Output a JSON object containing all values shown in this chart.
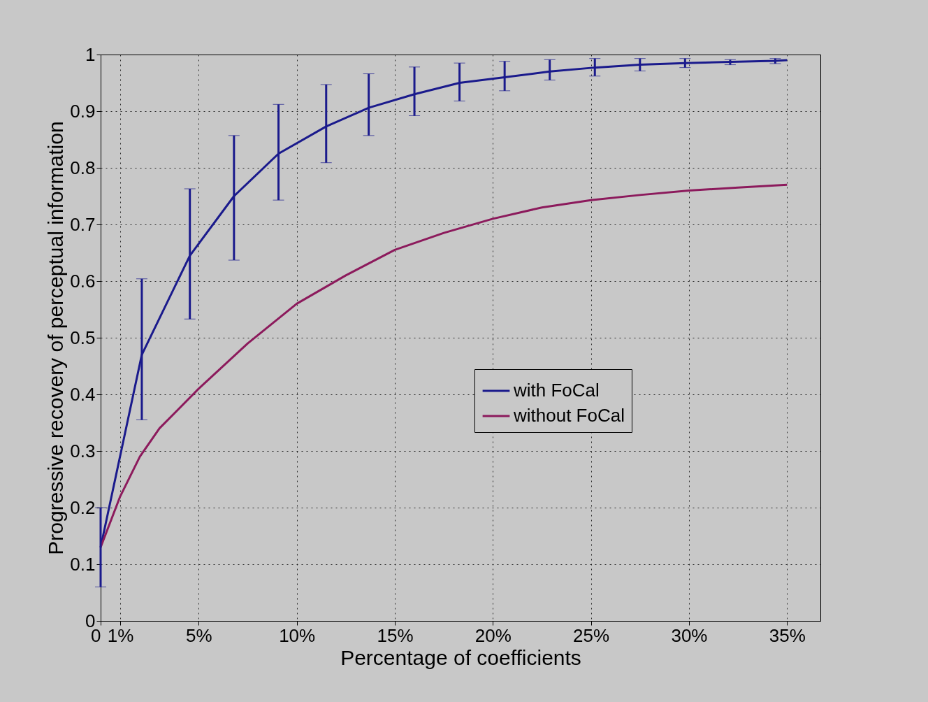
{
  "chart_data": {
    "type": "line",
    "xlabel": "Percentage of coefficients",
    "ylabel": "Progressive recovery of perceptual information",
    "xlim": [
      0,
      36.7
    ],
    "ylim": [
      0,
      1
    ],
    "xticks": [
      {
        "value": 0,
        "label": "0"
      },
      {
        "value": 1,
        "label": "1%"
      },
      {
        "value": 5,
        "label": "5%"
      },
      {
        "value": 10,
        "label": "10%"
      },
      {
        "value": 15,
        "label": "15%"
      },
      {
        "value": 20,
        "label": "20%"
      },
      {
        "value": 25,
        "label": "25%"
      },
      {
        "value": 30,
        "label": "30%"
      },
      {
        "value": 35,
        "label": "35%"
      }
    ],
    "yticks": [
      0,
      0.1,
      0.2,
      0.3,
      0.4,
      0.5,
      0.6,
      0.7,
      0.8,
      0.9,
      1
    ],
    "grid": true,
    "legend": "bottom right",
    "line_style": "solid",
    "marker": "none",
    "series": [
      {
        "name": "with FoCal",
        "color": "#1a1a8c",
        "x": [
          0,
          2.1,
          4.55,
          6.8,
          9.07,
          11.5,
          13.67,
          16.0,
          18.3,
          20.6,
          22.9,
          25.2,
          27.5,
          29.8,
          32.1,
          34.4,
          35
        ],
        "values": [
          0.13,
          0.47,
          0.645,
          0.75,
          0.825,
          0.873,
          0.906,
          0.93,
          0.95,
          0.96,
          0.97,
          0.977,
          0.982,
          0.985,
          0.987,
          0.989,
          0.99
        ],
        "errors": [
          [
            0.06,
            0.2
          ],
          [
            0.355,
            0.604
          ],
          [
            0.533,
            0.763
          ],
          [
            0.637,
            0.857
          ],
          [
            0.743,
            0.912
          ],
          [
            0.809,
            0.947
          ],
          [
            0.857,
            0.966
          ],
          [
            0.892,
            0.978
          ],
          [
            0.918,
            0.985
          ],
          [
            0.936,
            0.988
          ],
          [
            0.955,
            0.991
          ],
          [
            0.962,
            0.993
          ],
          [
            0.971,
            0.993
          ],
          [
            0.977,
            0.993
          ],
          [
            0.982,
            0.991
          ],
          [
            0.984,
            0.993
          ],
          null
        ]
      },
      {
        "name": "without FoCal",
        "color": "#8c1a5c",
        "x": [
          0,
          1,
          2,
          3,
          5,
          7.5,
          10,
          12.5,
          15,
          17.5,
          20,
          22.5,
          25,
          27.5,
          30,
          32.5,
          35
        ],
        "values": [
          0.13,
          0.22,
          0.29,
          0.34,
          0.41,
          0.49,
          0.56,
          0.61,
          0.655,
          0.685,
          0.71,
          0.73,
          0.743,
          0.752,
          0.76,
          0.765,
          0.77
        ]
      }
    ]
  }
}
